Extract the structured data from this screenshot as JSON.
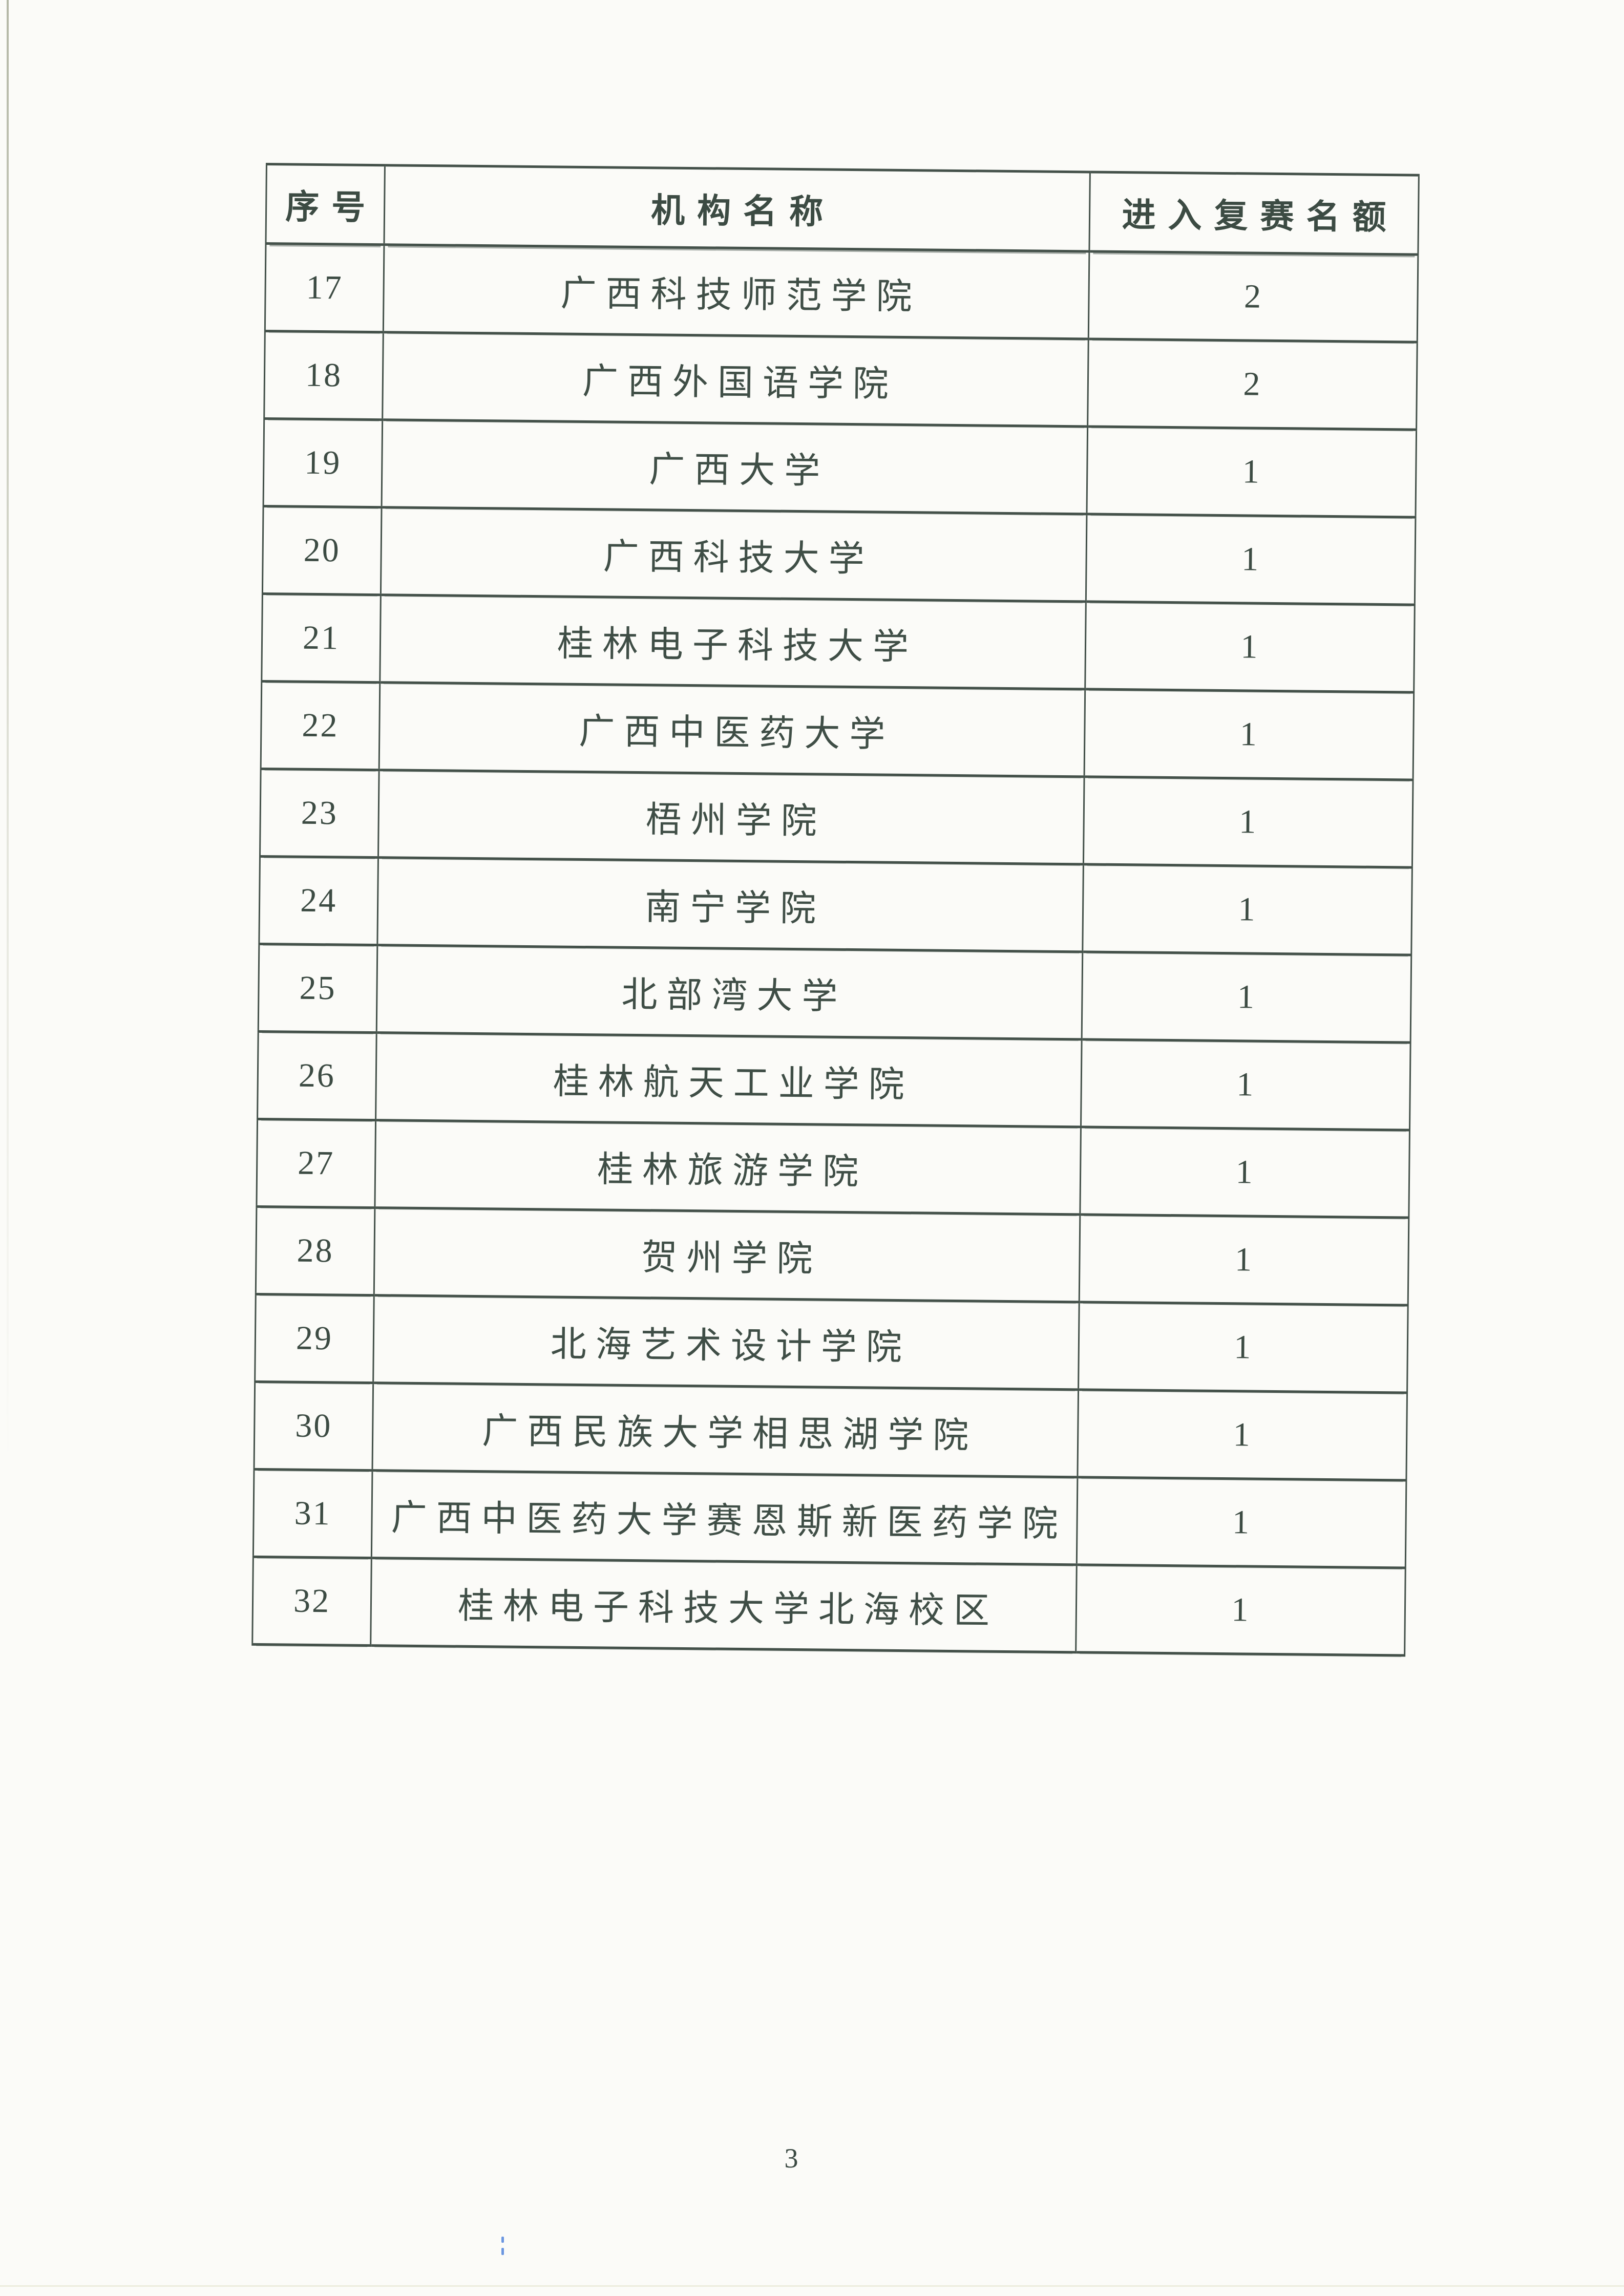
{
  "page": {
    "number": "3"
  },
  "table": {
    "headers": [
      "序号",
      "机构名称",
      "进入复赛名额"
    ],
    "rows": [
      {
        "no": "17",
        "name": "广西科技师范学院",
        "quota": "2"
      },
      {
        "no": "18",
        "name": "广西外国语学院",
        "quota": "2"
      },
      {
        "no": "19",
        "name": "广西大学",
        "quota": "1"
      },
      {
        "no": "20",
        "name": "广西科技大学",
        "quota": "1"
      },
      {
        "no": "21",
        "name": "桂林电子科技大学",
        "quota": "1"
      },
      {
        "no": "22",
        "name": "广西中医药大学",
        "quota": "1"
      },
      {
        "no": "23",
        "name": "梧州学院",
        "quota": "1"
      },
      {
        "no": "24",
        "name": "南宁学院",
        "quota": "1"
      },
      {
        "no": "25",
        "name": "北部湾大学",
        "quota": "1"
      },
      {
        "no": "26",
        "name": "桂林航天工业学院",
        "quota": "1"
      },
      {
        "no": "27",
        "name": "桂林旅游学院",
        "quota": "1"
      },
      {
        "no": "28",
        "name": "贺州学院",
        "quota": "1"
      },
      {
        "no": "29",
        "name": "北海艺术设计学院",
        "quota": "1"
      },
      {
        "no": "30",
        "name": "广西民族大学相思湖学院",
        "quota": "1"
      },
      {
        "no": "31",
        "name": "广西中医药大学赛恩斯新医药学院",
        "quota": "1"
      },
      {
        "no": "32",
        "name": "桂林电子科技大学北海校区",
        "quota": "1"
      }
    ]
  }
}
